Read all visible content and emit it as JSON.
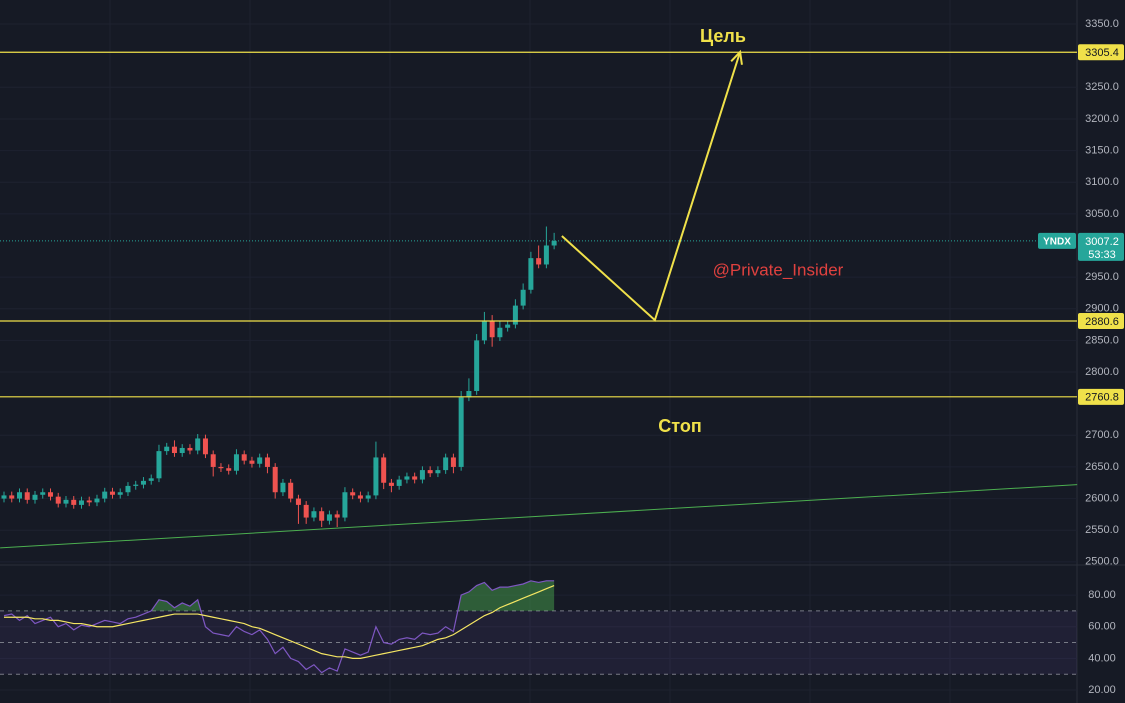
{
  "chart_data": [
    {
      "type": "candlestick",
      "symbol": "YNDX",
      "last": 3007.2,
      "countdown": "53:33",
      "up_color": "#26a69a",
      "down_color": "#ef5350",
      "level_color": "#f0e14a",
      "xlim": [
        -0.516,
        138.48
      ],
      "ylim": [
        2495,
        3388
      ],
      "yticks": [
        {
          "value": 3350,
          "label": "3350.0"
        },
        {
          "value": 3250,
          "label": "3250.0"
        },
        {
          "value": 3200,
          "label": "3200.0"
        },
        {
          "value": 3150,
          "label": "3150.0"
        },
        {
          "value": 3100,
          "label": "3100.0"
        },
        {
          "value": 3050,
          "label": "3050.0"
        },
        {
          "value": 2950,
          "label": "2950.0"
        },
        {
          "value": 2900,
          "label": "2900.0"
        },
        {
          "value": 2850,
          "label": "2850.0"
        },
        {
          "value": 2800,
          "label": "2800.0"
        },
        {
          "value": 2700,
          "label": "2700.0"
        },
        {
          "value": 2650,
          "label": "2650.0"
        },
        {
          "value": 2600,
          "label": "2600.0"
        },
        {
          "value": 2550,
          "label": "2550.0"
        },
        {
          "value": 2500,
          "label": "2500.0"
        }
      ],
      "levels": [
        3305.4,
        2880.6,
        2760.8
      ],
      "annotations": [
        "Цель",
        "Стоп",
        "@Private_Insider"
      ],
      "trendline": {
        "color": "#4caf50",
        "x": [
          -0.5,
          138.5
        ],
        "values": [
          2522,
          2622
        ]
      },
      "forecast": {
        "x": [
          72,
          84,
          95
        ],
        "values": [
          3015,
          2882,
          3306
        ]
      },
      "open": [
        2600,
        2605,
        2600,
        2610,
        2598,
        2606,
        2610,
        2603,
        2592,
        2598,
        2590,
        2597,
        2594,
        2600,
        2611,
        2606,
        2610,
        2620,
        2622,
        2628,
        2632,
        2675,
        2682,
        2672,
        2680,
        2676,
        2695,
        2670,
        2650,
        2648,
        2644,
        2670,
        2660,
        2655,
        2665,
        2650,
        2610,
        2625,
        2600,
        2590,
        2570,
        2580,
        2565,
        2575,
        2570,
        2610,
        2605,
        2600,
        2605,
        2665,
        2625,
        2620,
        2630,
        2635,
        2630,
        2645,
        2640,
        2645,
        2665,
        2650,
        2760,
        2770,
        2850,
        2880,
        2855,
        2870,
        2875,
        2905,
        2930,
        2980,
        2970,
        3000
      ],
      "high": [
        2611,
        2611,
        2616,
        2616,
        2612,
        2616,
        2616,
        2609,
        2604,
        2604,
        2603,
        2603,
        2606,
        2617,
        2617,
        2616,
        2626,
        2628,
        2634,
        2638,
        2685,
        2688,
        2692,
        2686,
        2686,
        2702,
        2701,
        2676,
        2656,
        2654,
        2678,
        2676,
        2666,
        2671,
        2671,
        2656,
        2631,
        2631,
        2606,
        2596,
        2586,
        2586,
        2581,
        2581,
        2618,
        2616,
        2611,
        2611,
        2690,
        2671,
        2631,
        2636,
        2641,
        2641,
        2651,
        2651,
        2651,
        2671,
        2671,
        2770,
        2790,
        2860,
        2895,
        2890,
        2880,
        2881,
        2915,
        2940,
        2990,
        3000,
        3030,
        3020
      ],
      "low": [
        2594,
        2594,
        2594,
        2592,
        2592,
        2600,
        2597,
        2586,
        2586,
        2584,
        2584,
        2588,
        2588,
        2594,
        2600,
        2600,
        2604,
        2614,
        2616,
        2622,
        2626,
        2669,
        2666,
        2666,
        2670,
        2670,
        2664,
        2635,
        2642,
        2638,
        2638,
        2654,
        2649,
        2649,
        2640,
        2600,
        2604,
        2594,
        2560,
        2560,
        2564,
        2555,
        2559,
        2555,
        2564,
        2599,
        2594,
        2594,
        2599,
        2615,
        2610,
        2614,
        2624,
        2624,
        2624,
        2634,
        2634,
        2639,
        2640,
        2644,
        2754,
        2764,
        2844,
        2840,
        2849,
        2864,
        2869,
        2899,
        2924,
        2964,
        2964,
        2994
      ],
      "close": [
        2605,
        2600,
        2610,
        2598,
        2606,
        2610,
        2603,
        2592,
        2598,
        2590,
        2597,
        2594,
        2600,
        2611,
        2606,
        2610,
        2620,
        2622,
        2628,
        2632,
        2675,
        2682,
        2672,
        2680,
        2676,
        2695,
        2670,
        2650,
        2648,
        2644,
        2670,
        2660,
        2655,
        2665,
        2650,
        2610,
        2625,
        2600,
        2590,
        2570,
        2580,
        2565,
        2575,
        2570,
        2610,
        2605,
        2600,
        2605,
        2665,
        2625,
        2620,
        2630,
        2635,
        2630,
        2645,
        2640,
        2645,
        2665,
        2650,
        2760,
        2770,
        2850,
        2880,
        2855,
        2870,
        2875,
        2905,
        2930,
        2980,
        2970,
        3000,
        3007.2
      ]
    },
    {
      "type": "line",
      "xlim": [
        -0.516,
        138.48
      ],
      "ylim": [
        11.8,
        99
      ],
      "yticks": [
        {
          "value": 80,
          "label": "80.00"
        },
        {
          "value": 60,
          "label": "60.00"
        },
        {
          "value": 40,
          "label": "40.00"
        },
        {
          "value": 20,
          "label": "20.00"
        }
      ],
      "levels": [
        70,
        50,
        30
      ],
      "series": [
        {
          "color": "#7e57c2",
          "values": [
            67,
            68,
            64,
            67,
            62,
            64,
            66,
            60,
            62,
            58,
            61,
            60,
            62,
            64,
            63,
            62,
            65,
            66,
            68,
            70,
            77,
            76,
            72,
            75,
            73,
            77,
            60,
            56,
            55,
            54,
            60,
            57,
            55,
            58,
            52,
            43,
            47,
            40,
            38,
            33,
            36,
            31,
            34,
            32,
            46,
            44,
            42,
            44,
            60,
            50,
            49,
            52,
            53,
            52,
            56,
            55,
            56,
            60,
            57,
            80,
            82,
            86,
            88,
            83,
            85,
            85,
            86,
            87,
            89,
            88,
            89,
            89
          ]
        },
        {
          "color": "#f5e663",
          "values": [
            66,
            66,
            66,
            66,
            65,
            65,
            64,
            64,
            63,
            62,
            62,
            61,
            60,
            60,
            60,
            61,
            62,
            63,
            64,
            65,
            66,
            67,
            68,
            68,
            68,
            68,
            67,
            66,
            65,
            64,
            63,
            62,
            60,
            59,
            57,
            55,
            53,
            51,
            49,
            47,
            45,
            43,
            42,
            41,
            41,
            40,
            40,
            41,
            42,
            43,
            44,
            45,
            46,
            47,
            48,
            50,
            52,
            53,
            55,
            58,
            61,
            64,
            67,
            69,
            72,
            74,
            76,
            78,
            80,
            82,
            84,
            86
          ]
        }
      ]
    }
  ]
}
